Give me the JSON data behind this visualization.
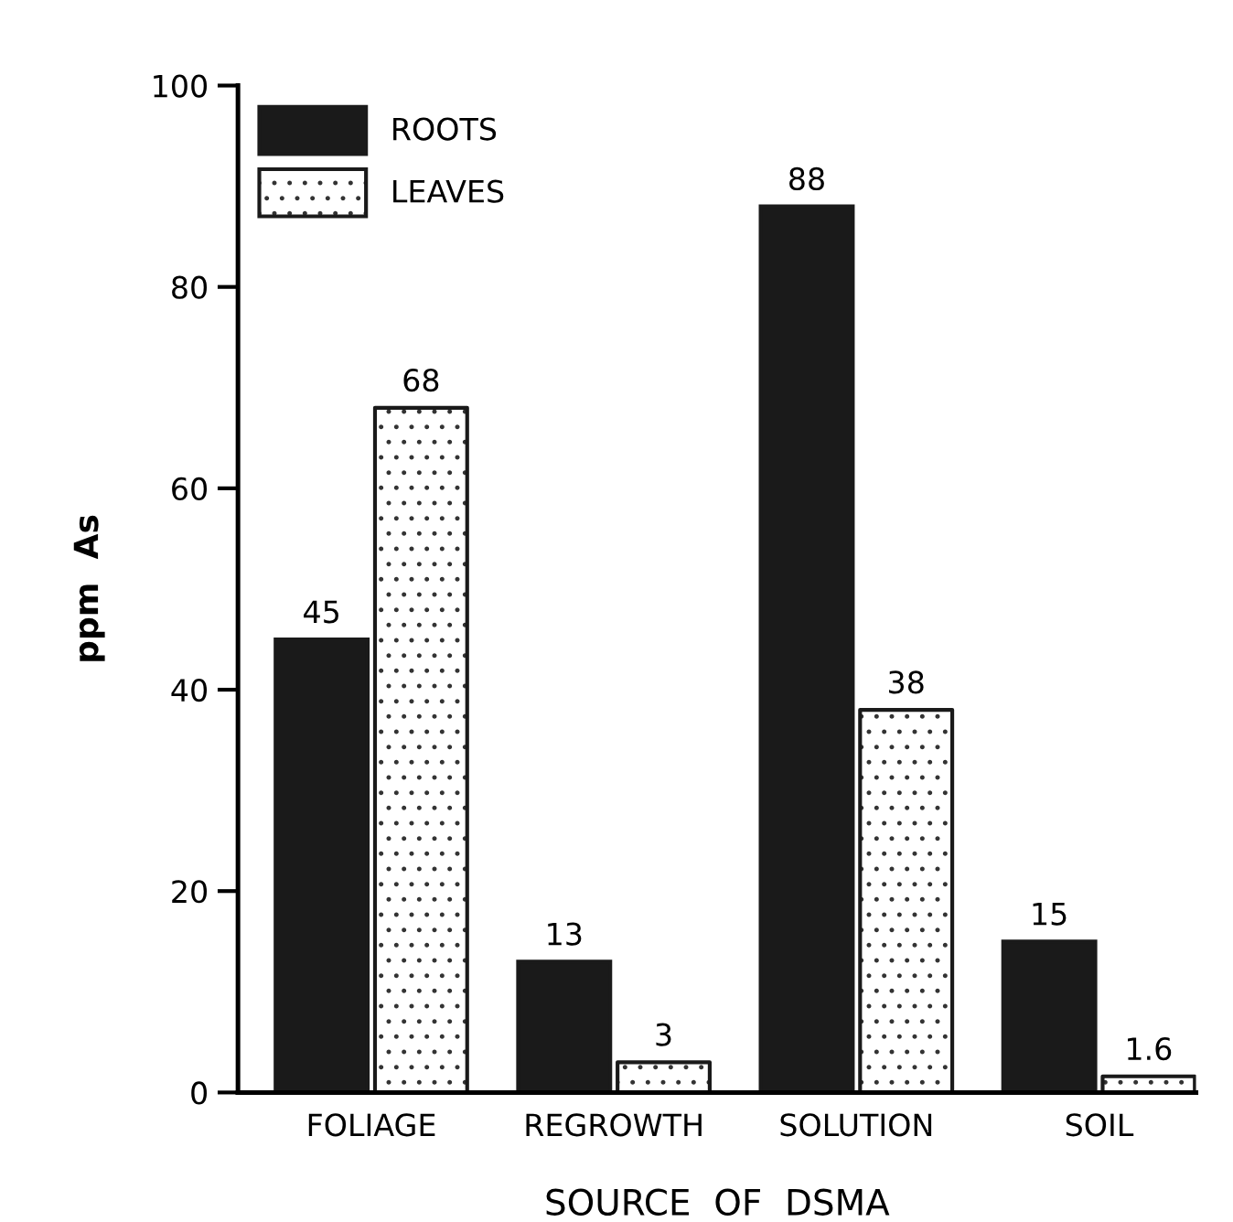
{
  "chart_data": {
    "type": "bar",
    "xlabel": "SOURCE  OF  DSMA",
    "ylabel": "ppm  As",
    "categories": [
      "FOLIAGE",
      "REGROWTH",
      "SOLUTION",
      "SOIL"
    ],
    "series": [
      {
        "name": "ROOTS",
        "color": "#1a1a1a",
        "values": [
          45,
          13,
          88,
          15
        ]
      },
      {
        "name": "LEAVES",
        "color": "#ffffff",
        "values": [
          68,
          3,
          38,
          1.6
        ]
      }
    ],
    "ylim": [
      0,
      100
    ],
    "yticks": [
      0,
      20,
      40,
      60,
      80,
      100
    ],
    "data_labels": true,
    "grid": false,
    "legend": "top left"
  }
}
